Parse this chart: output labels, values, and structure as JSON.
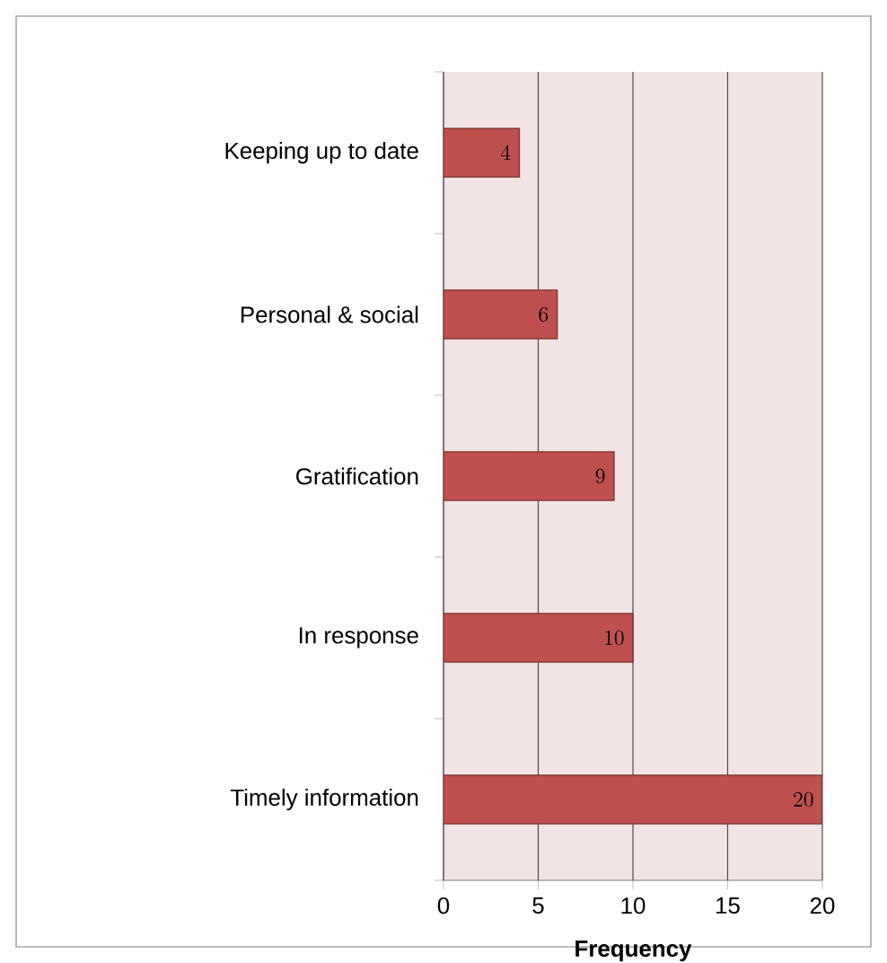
{
  "chart_data": {
    "type": "bar",
    "orientation": "horizontal",
    "xlabel": "Frequency",
    "categories": [
      "Keeping up to date",
      "Personal & social",
      "Gratification",
      "In response",
      "Timely information"
    ],
    "values": [
      4,
      6,
      9,
      10,
      20
    ],
    "color": "#c0504d",
    "xlim": [
      0,
      20
    ],
    "xticks": [
      0,
      5,
      10,
      15,
      20
    ],
    "grid": "x",
    "data_labels": true
  }
}
